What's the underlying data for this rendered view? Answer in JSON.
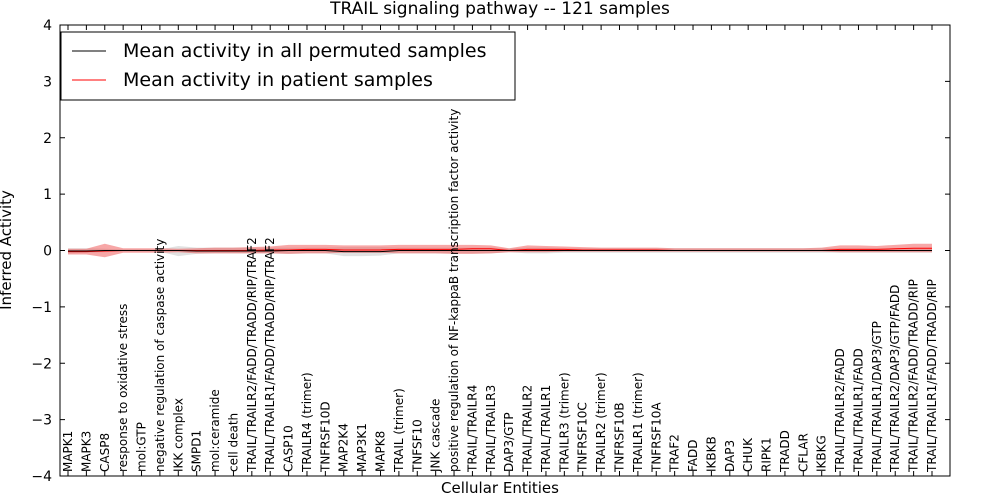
{
  "chart_data": {
    "type": "line",
    "title": "TRAIL signaling pathway -- 121 samples",
    "xlabel": "Cellular Entities",
    "ylabel": "Inferred Activity",
    "ylim": [
      -4,
      4
    ],
    "yticks": [
      4,
      3,
      2,
      1,
      0,
      -1,
      -2,
      -3,
      -4
    ],
    "ytick_labels": [
      "4",
      "3",
      "2",
      "1",
      "0",
      "−1",
      "−2",
      "−3",
      "−4"
    ],
    "legend_position": "top-left",
    "categories": [
      "MAPK1",
      "MAPK3",
      "CASP8",
      "response to oxidative stress",
      "mol:GTP",
      "negative regulation of caspase activity",
      "IKK complex",
      "SMPD1",
      "mol:ceramide",
      "cell death",
      "TRAIL/TRAILR2/FADD/TRADD/RIP/TRAF2",
      "TRAIL/TRAILR1/FADD/TRADD/RIP/TRAF2",
      "CASP10",
      "TRAILR4 (trimer)",
      "TNFRSF10D",
      "MAP2K4",
      "MAP3K1",
      "MAPK8",
      "TRAIL (trimer)",
      "TNFSF10",
      "JNK cascade",
      "positive regulation of NF-kappaB transcription factor activity",
      "TRAIL/TRAILR4",
      "TRAIL/TRAILR3",
      "DAP3/GTP",
      "TRAIL/TRAILR2",
      "TRAIL/TRAILR1",
      "TRAILR3 (trimer)",
      "TNFRSF10C",
      "TRAILR2 (trimer)",
      "TNFRSF10B",
      "TRAILR1 (trimer)",
      "TNFRSF10A",
      "TRAF2",
      "FADD",
      "IKBKB",
      "DAP3",
      "CHUK",
      "RIPK1",
      "TRADD",
      "CFLAR",
      "IKBKG",
      "TRAIL/TRAILR2/FADD",
      "TRAIL/TRAILR1/FADD",
      "TRAIL/TRAILR1/DAP3/GTP",
      "TRAIL/TRAILR2/DAP3/GTP/FADD",
      "TRAIL/TRAILR2/FADD/TRADD/RIP",
      "TRAIL/TRAILR1/FADD/TRADD/RIP"
    ],
    "series": [
      {
        "name": "Mean activity in all permuted samples",
        "color": "#000000",
        "values": [
          -0.01,
          -0.01,
          0.0,
          0.0,
          0.0,
          0.0,
          0.0,
          -0.01,
          -0.01,
          -0.01,
          -0.01,
          -0.01,
          0.0,
          0.0,
          0.0,
          -0.02,
          -0.02,
          -0.02,
          0.0,
          0.0,
          0.0,
          0.0,
          0.0,
          0.0,
          0.0,
          0.0,
          0.0,
          0.0,
          0.0,
          0.0,
          0.0,
          0.0,
          0.0,
          0.0,
          0.0,
          0.0,
          0.0,
          0.0,
          0.0,
          0.0,
          0.0,
          0.0,
          0.0,
          0.0,
          0.0,
          0.0,
          0.0,
          0.0
        ],
        "band_low": [
          -0.05,
          -0.04,
          -0.03,
          -0.02,
          -0.02,
          -0.02,
          -0.1,
          -0.06,
          -0.05,
          -0.05,
          -0.05,
          -0.05,
          -0.06,
          -0.05,
          -0.05,
          -0.1,
          -0.1,
          -0.09,
          -0.05,
          -0.05,
          -0.05,
          -0.05,
          -0.05,
          -0.05,
          -0.03,
          -0.05,
          -0.05,
          -0.04,
          -0.04,
          -0.04,
          -0.04,
          -0.04,
          -0.04,
          -0.04,
          -0.04,
          -0.04,
          -0.04,
          -0.04,
          -0.04,
          -0.04,
          -0.04,
          -0.04,
          -0.04,
          -0.04,
          -0.04,
          -0.04,
          -0.04,
          -0.04
        ],
        "band_high": [
          0.04,
          0.04,
          0.03,
          0.02,
          0.02,
          0.02,
          0.08,
          0.05,
          0.05,
          0.05,
          0.05,
          0.05,
          0.05,
          0.05,
          0.05,
          0.06,
          0.06,
          0.06,
          0.05,
          0.05,
          0.05,
          0.05,
          0.05,
          0.05,
          0.03,
          0.05,
          0.05,
          0.04,
          0.04,
          0.04,
          0.04,
          0.04,
          0.04,
          0.04,
          0.04,
          0.04,
          0.04,
          0.04,
          0.04,
          0.04,
          0.04,
          0.04,
          0.04,
          0.04,
          0.04,
          0.04,
          0.04,
          0.04
        ]
      },
      {
        "name": "Mean activity in patient samples",
        "color": "#ff0000",
        "values": [
          -0.02,
          -0.02,
          -0.01,
          0.0,
          0.0,
          0.0,
          0.0,
          0.0,
          0.0,
          0.0,
          0.0,
          0.01,
          0.01,
          0.02,
          0.02,
          0.01,
          0.01,
          0.01,
          0.02,
          0.02,
          0.02,
          0.02,
          0.03,
          0.03,
          0.0,
          0.02,
          0.02,
          0.02,
          0.01,
          0.01,
          0.01,
          0.01,
          0.01,
          0.0,
          0.0,
          0.0,
          0.0,
          0.0,
          0.0,
          0.0,
          0.0,
          0.0,
          0.02,
          0.02,
          0.02,
          0.03,
          0.04,
          0.04
        ],
        "band_low": [
          -0.07,
          -0.07,
          -0.12,
          -0.04,
          -0.04,
          -0.04,
          -0.03,
          -0.05,
          -0.05,
          -0.05,
          -0.05,
          -0.05,
          -0.06,
          -0.05,
          -0.05,
          -0.04,
          -0.04,
          -0.04,
          -0.05,
          -0.05,
          -0.05,
          -0.06,
          -0.06,
          -0.05,
          -0.03,
          -0.03,
          -0.03,
          -0.02,
          -0.02,
          -0.02,
          -0.02,
          -0.02,
          -0.02,
          -0.02,
          -0.02,
          -0.02,
          -0.02,
          -0.02,
          -0.02,
          -0.02,
          -0.02,
          -0.02,
          -0.03,
          -0.03,
          -0.03,
          -0.03,
          -0.03,
          -0.03
        ],
        "band_high": [
          0.03,
          0.03,
          0.12,
          0.04,
          0.04,
          0.04,
          0.03,
          0.04,
          0.05,
          0.05,
          0.06,
          0.07,
          0.1,
          0.1,
          0.1,
          0.09,
          0.09,
          0.09,
          0.1,
          0.1,
          0.1,
          0.1,
          0.1,
          0.09,
          0.04,
          0.09,
          0.08,
          0.07,
          0.06,
          0.05,
          0.05,
          0.05,
          0.05,
          0.04,
          0.04,
          0.04,
          0.04,
          0.04,
          0.04,
          0.04,
          0.04,
          0.05,
          0.09,
          0.09,
          0.08,
          0.1,
          0.12,
          0.12
        ]
      }
    ]
  }
}
